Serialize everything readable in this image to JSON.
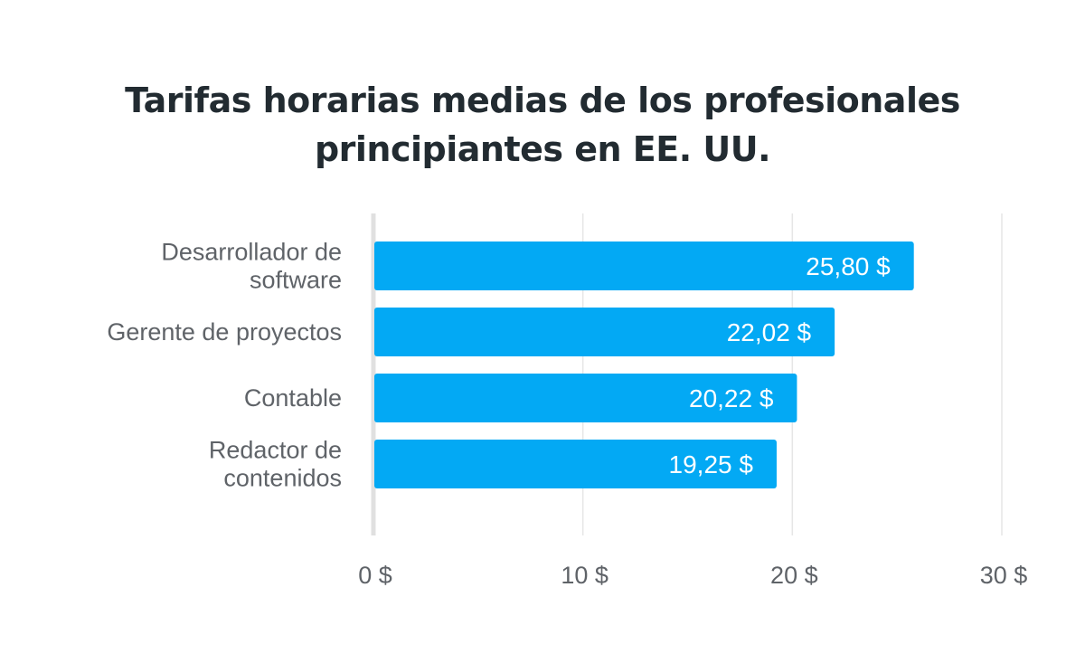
{
  "chart_data": {
    "type": "bar",
    "orientation": "horizontal",
    "title": [
      "Tarifas horarias medias de los profesionales",
      "principiantes en EE. UU."
    ],
    "categories": [
      [
        "Desarrollador de",
        "software"
      ],
      [
        "Gerente de proyectos"
      ],
      [
        "Contable"
      ],
      [
        "Redactor de",
        "contenidos"
      ]
    ],
    "values": [
      25.8,
      22.02,
      20.22,
      19.25
    ],
    "data_labels": [
      "25,80 $",
      "22,02 $",
      "20,22 $",
      "19,25 $"
    ],
    "x_ticks": [
      0,
      10,
      20,
      30
    ],
    "x_tick_labels": [
      "0 $",
      "10 $",
      "20 $",
      "30 $"
    ],
    "xlim": [
      0,
      30
    ],
    "grid": true,
    "legend": "none",
    "colors": {
      "bar": "#03a9f4",
      "grid": "#e6e6e6",
      "axis": "#e0e0e0",
      "title": "#222b31",
      "label": "#5f6368"
    }
  }
}
